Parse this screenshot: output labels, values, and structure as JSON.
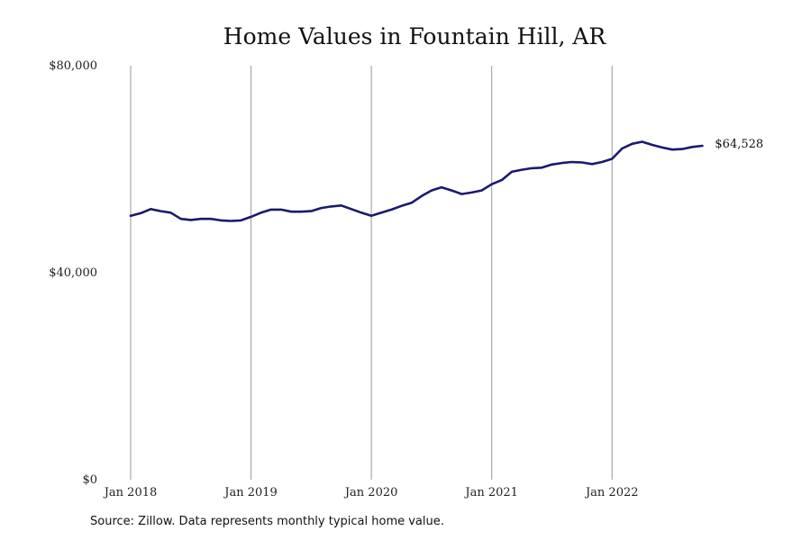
{
  "chart_data": {
    "type": "line",
    "title": "Home Values in Fountain Hill, AR",
    "xlabel": "",
    "ylabel": "",
    "x_start": "2018-01",
    "x_ticks": [
      "Jan 2018",
      "Jan 2019",
      "Jan 2020",
      "Jan 2021",
      "Jan 2022"
    ],
    "y_ticks": [
      "$0",
      "$40,000",
      "$80,000"
    ],
    "ylim": [
      0,
      80000
    ],
    "xlim": [
      "2018-01",
      "2022-10"
    ],
    "grid": "vertical lines at each January",
    "series": [
      {
        "name": "",
        "color": "#1a1a6e",
        "x": [
          "2018-01",
          "2018-02",
          "2018-03",
          "2018-04",
          "2018-05",
          "2018-06",
          "2018-07",
          "2018-08",
          "2018-09",
          "2018-10",
          "2018-11",
          "2018-12",
          "2019-01",
          "2019-02",
          "2019-03",
          "2019-04",
          "2019-05",
          "2019-06",
          "2019-07",
          "2019-08",
          "2019-09",
          "2019-10",
          "2019-11",
          "2019-12",
          "2020-01",
          "2020-02",
          "2020-03",
          "2020-04",
          "2020-05",
          "2020-06",
          "2020-07",
          "2020-08",
          "2020-09",
          "2020-10",
          "2020-11",
          "2020-12",
          "2021-01",
          "2021-02",
          "2021-03",
          "2021-04",
          "2021-05",
          "2021-06",
          "2021-07",
          "2021-08",
          "2021-09",
          "2021-10",
          "2021-11",
          "2021-12",
          "2022-01",
          "2022-02",
          "2022-03",
          "2022-04",
          "2022-05",
          "2022-06",
          "2022-07",
          "2022-08",
          "2022-09",
          "2022-10"
        ],
        "values": [
          51000,
          51500,
          52300,
          51900,
          51600,
          50400,
          50200,
          50400,
          50400,
          50100,
          50000,
          50100,
          50800,
          51600,
          52200,
          52200,
          51800,
          51800,
          51900,
          52500,
          52800,
          53000,
          52300,
          51600,
          51000,
          51600,
          52200,
          52900,
          53500,
          54800,
          55900,
          56500,
          55900,
          55200,
          55500,
          55900,
          57100,
          57900,
          59500,
          59900,
          60200,
          60300,
          60900,
          61200,
          61400,
          61300,
          61000,
          61400,
          62000,
          64000,
          64900,
          65300,
          64700,
          64200,
          63800,
          63900,
          64300,
          64528
        ]
      }
    ],
    "end_label": "$64,528"
  },
  "source": "Source: Zillow. Data represents monthly typical home value."
}
